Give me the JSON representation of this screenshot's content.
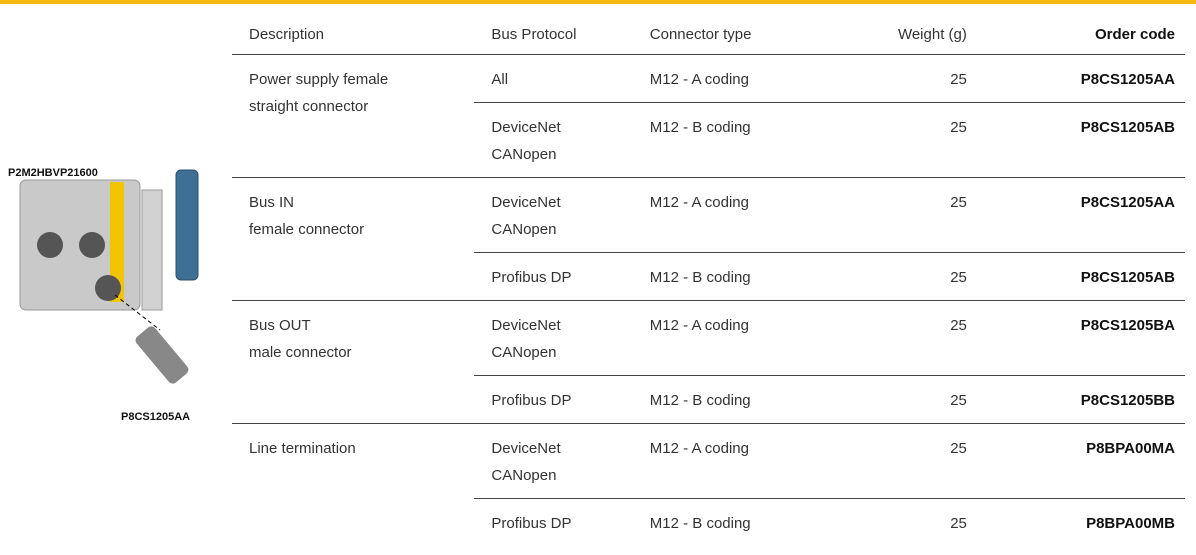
{
  "header": {
    "columns": [
      "Description",
      "Bus Protocol",
      "Connector type",
      "Weight (g)",
      "Order code"
    ]
  },
  "image_labels": {
    "module": "P2M2HBVP21600",
    "connector": "P8CS1205AA"
  },
  "table": {
    "groups": [
      {
        "description": [
          "Power supply female",
          "straight connector"
        ],
        "rows": [
          {
            "protocol": [
              "All"
            ],
            "connector": "M12 - A coding",
            "weight": 25,
            "code": "P8CS1205AA"
          },
          {
            "protocol": [
              "DeviceNet",
              "CANopen"
            ],
            "connector": "M12 - B coding",
            "weight": 25,
            "code": "P8CS1205AB"
          }
        ]
      },
      {
        "description": [
          "Bus IN",
          "female connector"
        ],
        "rows": [
          {
            "protocol": [
              "DeviceNet",
              "CANopen"
            ],
            "connector": "M12 - A coding",
            "weight": 25,
            "code": "P8CS1205AA"
          },
          {
            "protocol": [
              "Profibus DP"
            ],
            "connector": "M12 - B coding",
            "weight": 25,
            "code": "P8CS1205AB"
          }
        ]
      },
      {
        "description": [
          "Bus OUT",
          "male connector"
        ],
        "rows": [
          {
            "protocol": [
              "DeviceNet",
              "CANopen"
            ],
            "connector": "M12 - A coding",
            "weight": 25,
            "code": "P8CS1205BA"
          },
          {
            "protocol": [
              "Profibus DP"
            ],
            "connector": "M12 - B coding",
            "weight": 25,
            "code": "P8CS1205BB"
          }
        ]
      },
      {
        "description": [
          "Line termination"
        ],
        "rows": [
          {
            "protocol": [
              "DeviceNet",
              "CANopen"
            ],
            "connector": "M12 - A coding",
            "weight": 25,
            "code": "P8BPA00MA"
          },
          {
            "protocol": [
              "Profibus DP"
            ],
            "connector": "M12 - B coding",
            "weight": 25,
            "code": "P8BPA00MB"
          }
        ]
      }
    ]
  }
}
